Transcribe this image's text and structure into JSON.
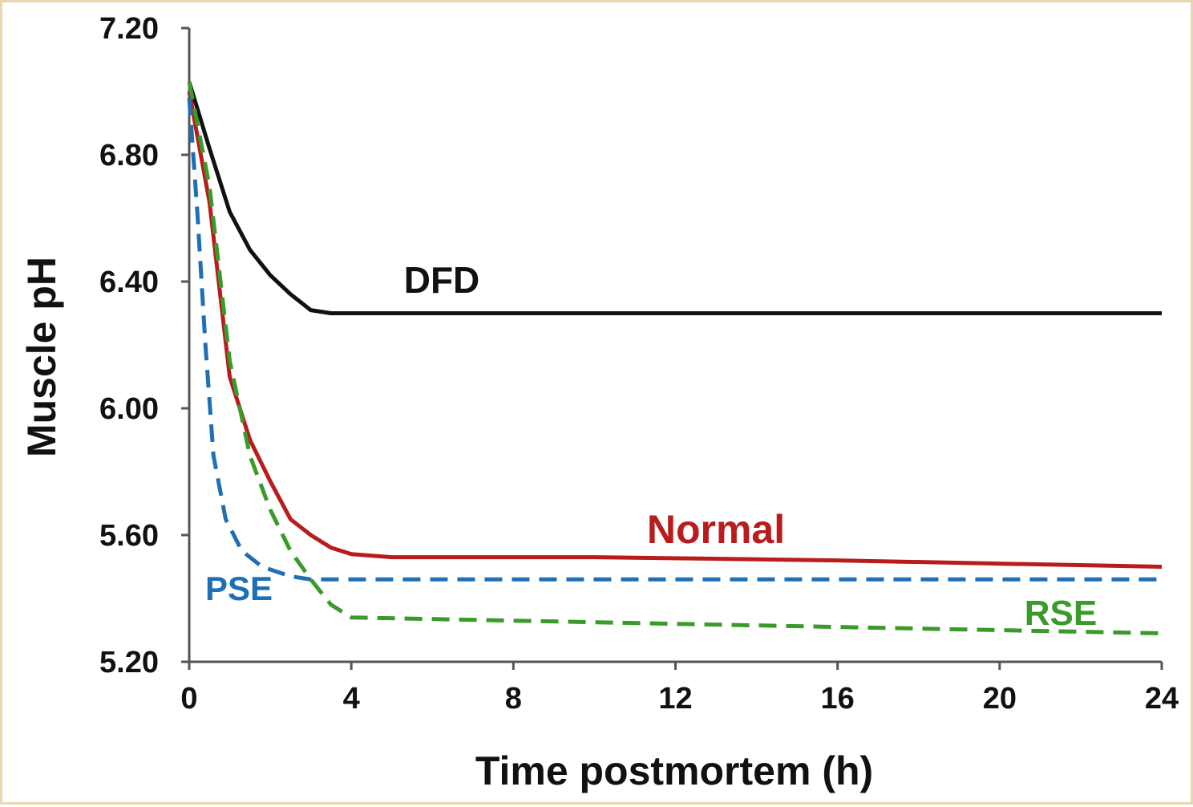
{
  "chart_data": {
    "type": "line",
    "title": "",
    "xlabel": "Time postmortem (h)",
    "ylabel": "Muscle pH",
    "xlim": [
      0,
      24
    ],
    "ylim": [
      5.2,
      7.2
    ],
    "x_ticks": [
      "0",
      "4",
      "8",
      "12",
      "16",
      "20",
      "24"
    ],
    "y_ticks": [
      "7.20",
      "6.80",
      "6.40",
      "6.00",
      "5.60",
      "5.20"
    ],
    "grid": false,
    "legend": "inline labels",
    "series": [
      {
        "name": "DFD",
        "color": "#111111",
        "style": "solid",
        "points": [
          [
            0,
            7.03
          ],
          [
            0.5,
            6.82
          ],
          [
            1,
            6.62
          ],
          [
            1.5,
            6.5
          ],
          [
            2,
            6.42
          ],
          [
            2.5,
            6.36
          ],
          [
            3,
            6.31
          ],
          [
            3.5,
            6.3
          ],
          [
            24,
            6.3
          ]
        ]
      },
      {
        "name": "Normal",
        "color": "#b81c1c",
        "style": "solid",
        "points": [
          [
            0,
            7.0
          ],
          [
            0.5,
            6.65
          ],
          [
            1,
            6.1
          ],
          [
            1.5,
            5.9
          ],
          [
            2,
            5.77
          ],
          [
            2.5,
            5.65
          ],
          [
            3,
            5.6
          ],
          [
            3.5,
            5.56
          ],
          [
            4,
            5.54
          ],
          [
            5,
            5.53
          ],
          [
            10,
            5.53
          ],
          [
            16,
            5.52
          ],
          [
            20,
            5.51
          ],
          [
            24,
            5.5
          ]
        ]
      },
      {
        "name": "PSE",
        "color": "#1f6fb5",
        "style": "dashed",
        "points": [
          [
            0,
            6.98
          ],
          [
            0.2,
            6.62
          ],
          [
            0.4,
            6.2
          ],
          [
            0.6,
            5.85
          ],
          [
            0.9,
            5.65
          ],
          [
            1.3,
            5.55
          ],
          [
            1.8,
            5.5
          ],
          [
            2.5,
            5.47
          ],
          [
            3,
            5.46
          ],
          [
            24,
            5.46
          ]
        ]
      },
      {
        "name": "RSE",
        "color": "#3a9a2a",
        "style": "dashed",
        "points": [
          [
            0,
            7.03
          ],
          [
            0.5,
            6.7
          ],
          [
            1,
            6.15
          ],
          [
            1.5,
            5.85
          ],
          [
            2,
            5.68
          ],
          [
            2.5,
            5.55
          ],
          [
            3,
            5.46
          ],
          [
            3.5,
            5.38
          ],
          [
            4,
            5.34
          ],
          [
            8,
            5.33
          ],
          [
            16,
            5.31
          ],
          [
            24,
            5.29
          ]
        ]
      }
    ],
    "annotations": [
      {
        "text": "DFD",
        "color": "#111111"
      },
      {
        "text": "Normal",
        "color": "#b81c1c"
      },
      {
        "text": "PSE",
        "color": "#1f6fb5"
      },
      {
        "text": "RSE",
        "color": "#3a9a2a"
      }
    ]
  }
}
